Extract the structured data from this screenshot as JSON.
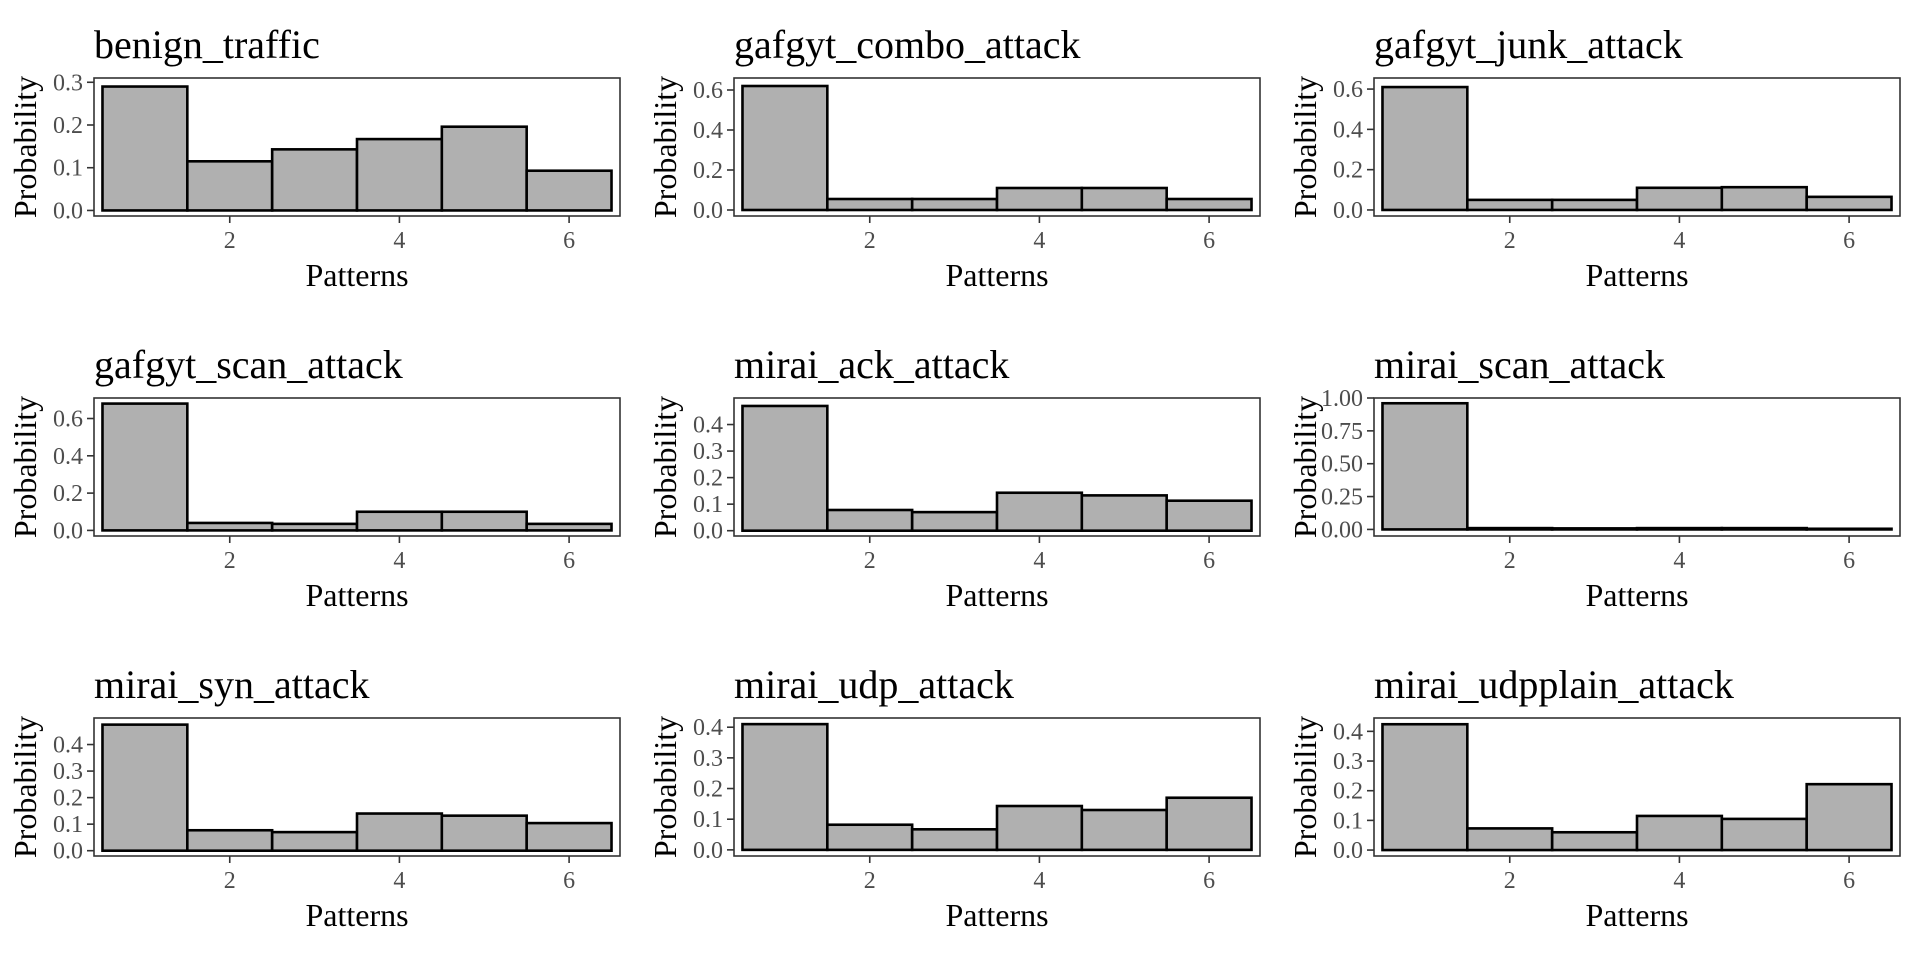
{
  "chart_data": [
    {
      "type": "bar",
      "title": "benign_traffic",
      "xlabel": "Patterns",
      "ylabel": "Probability",
      "categories": [
        1,
        2,
        3,
        4,
        5,
        6
      ],
      "values": [
        0.29,
        0.115,
        0.143,
        0.167,
        0.196,
        0.093
      ],
      "xlim": [
        0.4,
        6.6
      ],
      "ylim": [
        -0.013,
        0.31
      ],
      "x_ticks": [
        2,
        4,
        6
      ],
      "y_ticks": [
        0,
        0.1,
        0.2,
        0.3
      ],
      "y_tick_labels": [
        "0.0",
        "0.1",
        "0.2",
        "0.3"
      ],
      "grid": false,
      "colors": {
        "bar_fill": "#b0b0b0",
        "bar_edge": "#000000"
      }
    },
    {
      "type": "bar",
      "title": "gafgyt_combo_attack",
      "xlabel": "Patterns",
      "ylabel": "Probability",
      "categories": [
        1,
        2,
        3,
        4,
        5,
        6
      ],
      "values": [
        0.62,
        0.055,
        0.055,
        0.11,
        0.11,
        0.055
      ],
      "xlim": [
        0.4,
        6.6
      ],
      "ylim": [
        -0.03,
        0.66
      ],
      "x_ticks": [
        2,
        4,
        6
      ],
      "y_ticks": [
        0,
        0.2,
        0.4,
        0.6
      ],
      "y_tick_labels": [
        "0.0",
        "0.2",
        "0.4",
        "0.6"
      ],
      "grid": false,
      "colors": {
        "bar_fill": "#b0b0b0",
        "bar_edge": "#000000"
      }
    },
    {
      "type": "bar",
      "title": "gafgyt_junk_attack",
      "xlabel": "Patterns",
      "ylabel": "Probability",
      "categories": [
        1,
        2,
        3,
        4,
        5,
        6
      ],
      "values": [
        0.61,
        0.05,
        0.05,
        0.11,
        0.113,
        0.065
      ],
      "xlim": [
        0.4,
        6.6
      ],
      "ylim": [
        -0.03,
        0.655
      ],
      "x_ticks": [
        2,
        4,
        6
      ],
      "y_ticks": [
        0,
        0.2,
        0.4,
        0.6
      ],
      "y_tick_labels": [
        "0.0",
        "0.2",
        "0.4",
        "0.6"
      ],
      "grid": false,
      "colors": {
        "bar_fill": "#b0b0b0",
        "bar_edge": "#000000"
      }
    },
    {
      "type": "bar",
      "title": "gafgyt_scan_attack",
      "xlabel": "Patterns",
      "ylabel": "Probability",
      "categories": [
        1,
        2,
        3,
        4,
        5,
        6
      ],
      "values": [
        0.68,
        0.04,
        0.035,
        0.1,
        0.1,
        0.035
      ],
      "xlim": [
        0.4,
        6.6
      ],
      "ylim": [
        -0.03,
        0.71
      ],
      "x_ticks": [
        2,
        4,
        6
      ],
      "y_ticks": [
        0,
        0.2,
        0.4,
        0.6
      ],
      "y_tick_labels": [
        "0.0",
        "0.2",
        "0.4",
        "0.6"
      ],
      "grid": false,
      "colors": {
        "bar_fill": "#b0b0b0",
        "bar_edge": "#000000"
      }
    },
    {
      "type": "bar",
      "title": "mirai_ack_attack",
      "xlabel": "Patterns",
      "ylabel": "Probability",
      "categories": [
        1,
        2,
        3,
        4,
        5,
        6
      ],
      "values": [
        0.47,
        0.078,
        0.07,
        0.143,
        0.133,
        0.113
      ],
      "xlim": [
        0.4,
        6.6
      ],
      "ylim": [
        -0.02,
        0.5
      ],
      "x_ticks": [
        2,
        4,
        6
      ],
      "y_ticks": [
        0,
        0.1,
        0.2,
        0.3,
        0.4
      ],
      "y_tick_labels": [
        "0.0",
        "0.1",
        "0.2",
        "0.3",
        "0.4"
      ],
      "grid": false,
      "colors": {
        "bar_fill": "#b0b0b0",
        "bar_edge": "#000000"
      }
    },
    {
      "type": "bar",
      "title": "mirai_scan_attack",
      "xlabel": "Patterns",
      "ylabel": "Probability",
      "categories": [
        1,
        2,
        3,
        4,
        5,
        6
      ],
      "values": [
        0.96,
        0.01,
        0.008,
        0.01,
        0.01,
        0.005
      ],
      "xlim": [
        0.4,
        6.6
      ],
      "ylim": [
        -0.05,
        1.0
      ],
      "x_ticks": [
        2,
        4,
        6
      ],
      "y_ticks": [
        0,
        0.25,
        0.5,
        0.75,
        1.0
      ],
      "y_tick_labels": [
        "0.00",
        "0.25",
        "0.50",
        "0.75",
        "1.00"
      ],
      "grid": false,
      "colors": {
        "bar_fill": "#b0b0b0",
        "bar_edge": "#000000"
      }
    },
    {
      "type": "bar",
      "title": "mirai_syn_attack",
      "xlabel": "Patterns",
      "ylabel": "Probability",
      "categories": [
        1,
        2,
        3,
        4,
        5,
        6
      ],
      "values": [
        0.475,
        0.077,
        0.07,
        0.14,
        0.132,
        0.104
      ],
      "xlim": [
        0.4,
        6.6
      ],
      "ylim": [
        -0.02,
        0.5
      ],
      "x_ticks": [
        2,
        4,
        6
      ],
      "y_ticks": [
        0,
        0.1,
        0.2,
        0.3,
        0.4
      ],
      "y_tick_labels": [
        "0.0",
        "0.1",
        "0.2",
        "0.3",
        "0.4"
      ],
      "grid": false,
      "colors": {
        "bar_fill": "#b0b0b0",
        "bar_edge": "#000000"
      }
    },
    {
      "type": "bar",
      "title": "mirai_udp_attack",
      "xlabel": "Patterns",
      "ylabel": "Probability",
      "categories": [
        1,
        2,
        3,
        4,
        5,
        6
      ],
      "values": [
        0.41,
        0.082,
        0.067,
        0.143,
        0.13,
        0.17
      ],
      "xlim": [
        0.4,
        6.6
      ],
      "ylim": [
        -0.02,
        0.43
      ],
      "x_ticks": [
        2,
        4,
        6
      ],
      "y_ticks": [
        0,
        0.1,
        0.2,
        0.3,
        0.4
      ],
      "y_tick_labels": [
        "0.0",
        "0.1",
        "0.2",
        "0.3",
        "0.4"
      ],
      "grid": false,
      "colors": {
        "bar_fill": "#b0b0b0",
        "bar_edge": "#000000"
      }
    },
    {
      "type": "bar",
      "title": "mirai_udpplain_attack",
      "xlabel": "Patterns",
      "ylabel": "Probability",
      "categories": [
        1,
        2,
        3,
        4,
        5,
        6
      ],
      "values": [
        0.424,
        0.073,
        0.06,
        0.115,
        0.105,
        0.222
      ],
      "xlim": [
        0.4,
        6.6
      ],
      "ylim": [
        -0.02,
        0.445
      ],
      "x_ticks": [
        2,
        4,
        6
      ],
      "y_ticks": [
        0,
        0.1,
        0.2,
        0.3,
        0.4
      ],
      "y_tick_labels": [
        "0.0",
        "0.1",
        "0.2",
        "0.3",
        "0.4"
      ],
      "grid": false,
      "colors": {
        "bar_fill": "#b0b0b0",
        "bar_edge": "#000000"
      }
    }
  ]
}
